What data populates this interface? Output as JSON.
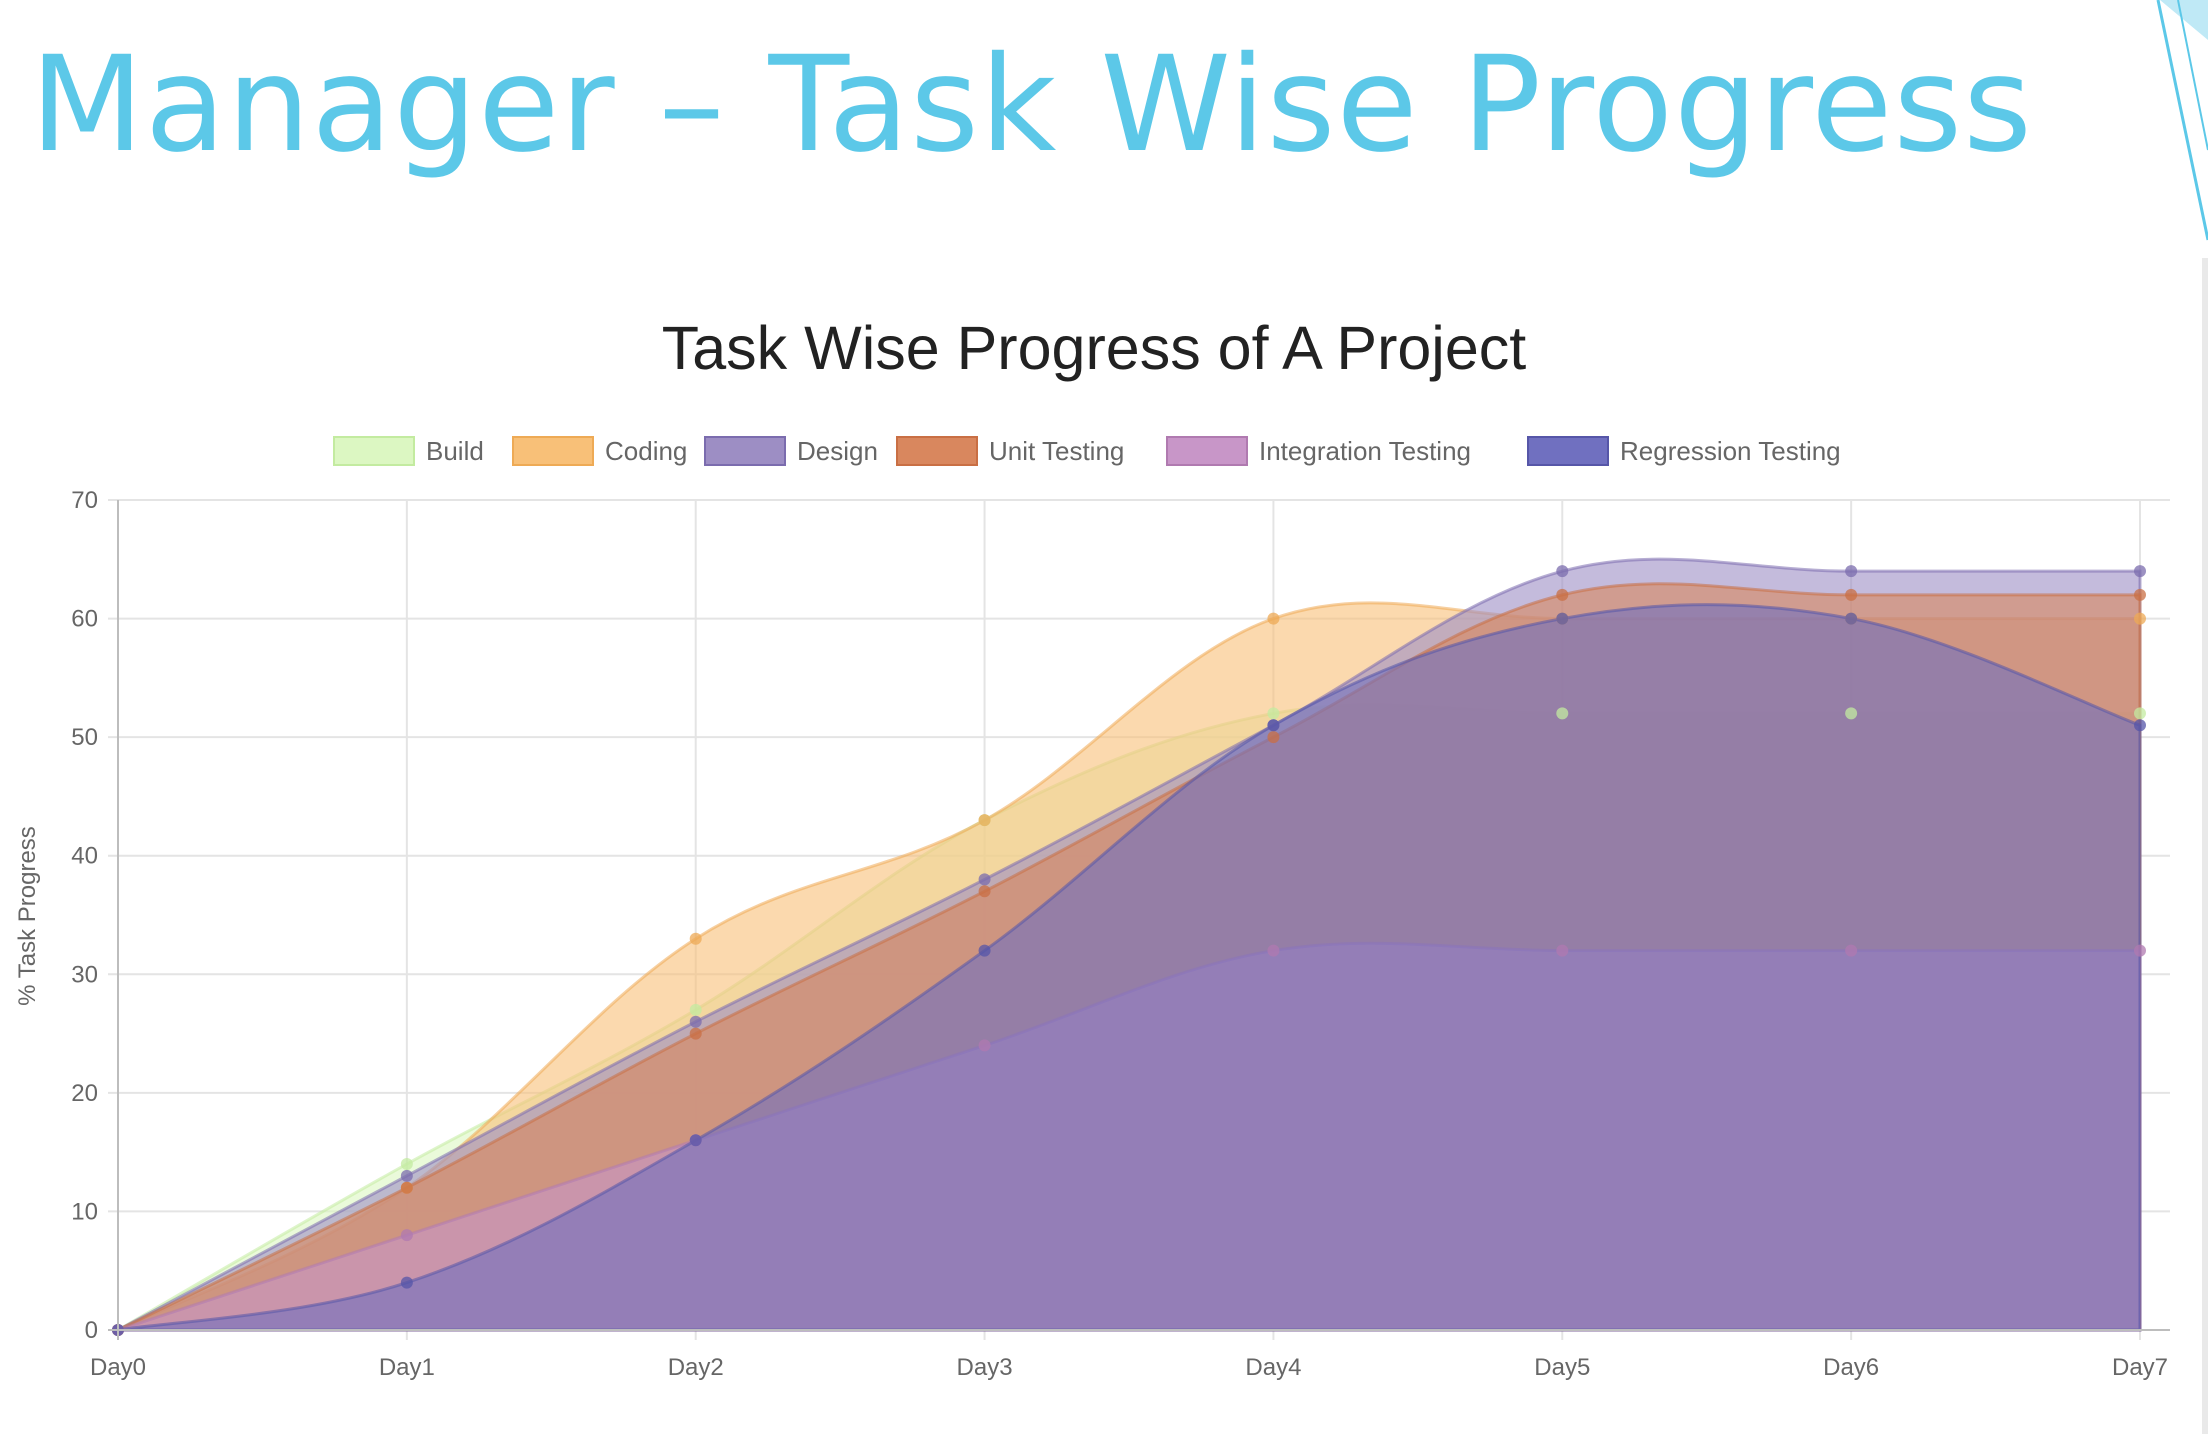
{
  "slide": {
    "title": "Manager – Task Wise Progress"
  },
  "chart_data": {
    "type": "area",
    "title": "Task Wise Progress of A Project",
    "xlabel": "",
    "ylabel": "% Task Progress",
    "categories": [
      "Day0",
      "Day1",
      "Day2",
      "Day3",
      "Day4",
      "Day5",
      "Day6",
      "Day7"
    ],
    "ylim": [
      0,
      70
    ],
    "yticks": [
      0,
      10,
      20,
      30,
      40,
      50,
      60,
      70
    ],
    "grid": true,
    "legend_position": "top",
    "series": [
      {
        "name": "Build",
        "values": [
          0,
          14,
          27,
          43,
          52,
          52,
          52,
          52
        ],
        "fill": "#dcf7c2",
        "stroke": "#c3eba0"
      },
      {
        "name": "Coding",
        "values": [
          0,
          12,
          33,
          43,
          60,
          60,
          60,
          60
        ],
        "fill": "#f8c078",
        "stroke": "#eeaa55"
      },
      {
        "name": "Design",
        "values": [
          0,
          13,
          26,
          38,
          51,
          64,
          64,
          64
        ],
        "fill": "#9d8ec4",
        "stroke": "#7b6cae"
      },
      {
        "name": "Unit Testing",
        "values": [
          0,
          12,
          25,
          37,
          50,
          62,
          62,
          62
        ],
        "fill": "#d9875e",
        "stroke": "#c96f44"
      },
      {
        "name": "Integration Testing",
        "values": [
          0,
          8,
          16,
          24,
          32,
          32,
          32,
          32
        ],
        "fill": "#c896c8",
        "stroke": "#b07ab0"
      },
      {
        "name": "Regression Testing",
        "values": [
          0,
          4,
          16,
          32,
          51,
          60,
          60,
          51
        ],
        "fill": "#7070c0",
        "stroke": "#5656a8"
      }
    ]
  }
}
